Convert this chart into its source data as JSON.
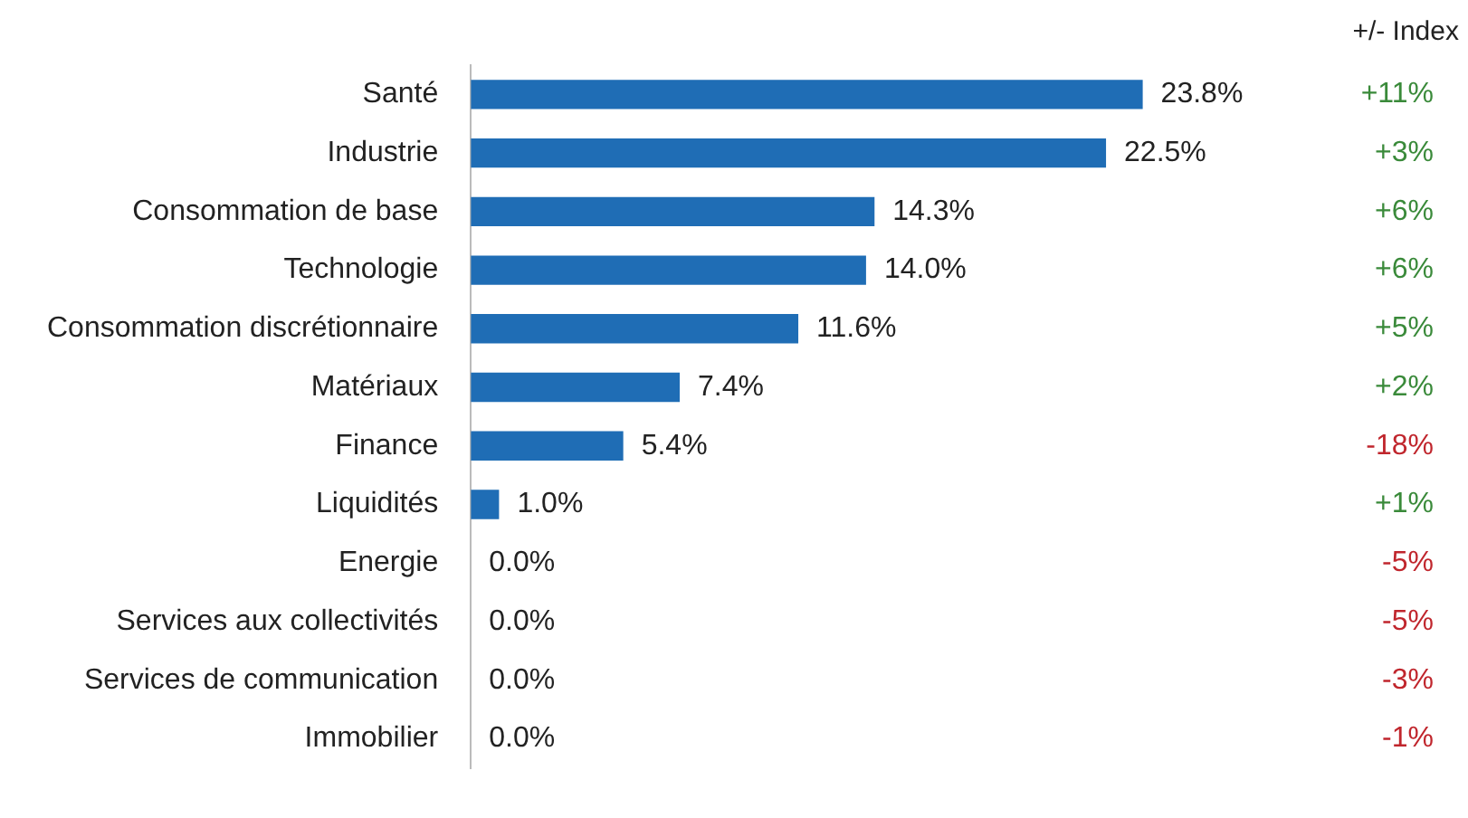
{
  "chart_data": {
    "type": "bar",
    "orientation": "horizontal",
    "categories": [
      "Santé",
      "Industrie",
      "Consommation de base",
      "Technologie",
      "Consommation discrétionnaire",
      "Matériaux",
      "Finance",
      "Liquidités",
      "Energie",
      "Services aux collectivités",
      "Services de communication",
      "Immobilier"
    ],
    "values": [
      23.8,
      22.5,
      14.3,
      14.0,
      11.6,
      7.4,
      5.4,
      1.0,
      0.0,
      0.0,
      0.0,
      0.0
    ],
    "value_labels": [
      "23.8%",
      "22.5%",
      "14.3%",
      "14.0%",
      "11.6%",
      "7.4%",
      "5.4%",
      "1.0%",
      "0.0%",
      "0.0%",
      "0.0%",
      "0.0%"
    ],
    "color": "#1f6db5",
    "grid": false,
    "legend": false,
    "tick_labels": "y",
    "annotations": [
      "+/- Index",
      "+11%",
      "+3%",
      "+6%",
      "+6%",
      "+5%",
      "+2%",
      "-18%",
      "+1%",
      "-5%",
      "-5%",
      "-3%",
      "-1%"
    ]
  }
}
